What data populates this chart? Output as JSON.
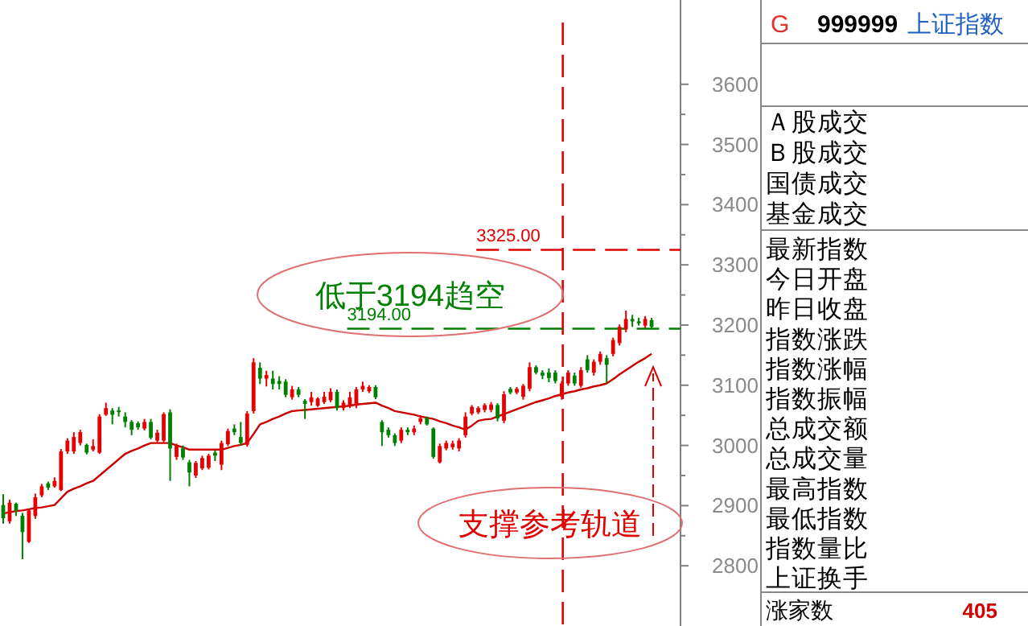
{
  "chart_data": [
    {
      "type": "candlestick",
      "categories": [
        null,
        null,
        null,
        null,
        null,
        null,
        null,
        null,
        null,
        null,
        null,
        null,
        null,
        null,
        null,
        null,
        null,
        null,
        null,
        null,
        null,
        null,
        null,
        null,
        null,
        null,
        null,
        null,
        null,
        null,
        null,
        null,
        null,
        null,
        null,
        null,
        null,
        null,
        null,
        null,
        null,
        null,
        null,
        null,
        null,
        null,
        null,
        null,
        null,
        null,
        null,
        null,
        null,
        null,
        null,
        null,
        null,
        null,
        null,
        null,
        null,
        null,
        null,
        null,
        null,
        null,
        null,
        null,
        null,
        null,
        null,
        null,
        null,
        null,
        null,
        null,
        null,
        null,
        null,
        null,
        null,
        null,
        null,
        null,
        null,
        null,
        null,
        null,
        null,
        null,
        null,
        null,
        null,
        null,
        null,
        null,
        null,
        null,
        null,
        null,
        null,
        null
      ],
      "ohlc": [
        [
          2901,
          2919,
          2870,
          2879
        ],
        [
          2874,
          2910,
          2870,
          2905
        ],
        [
          2903,
          2905,
          2883,
          2892
        ],
        [
          2883,
          2888,
          2811,
          2856
        ],
        [
          2840,
          2894,
          2838,
          2892
        ],
        [
          2883,
          2920,
          2878,
          2914
        ],
        [
          2917,
          2936,
          2914,
          2932
        ],
        [
          2937,
          2940,
          2926,
          2930
        ],
        [
          2932,
          2947,
          2930,
          2941
        ],
        [
          2926,
          2994,
          2924,
          2990
        ],
        [
          2990,
          3012,
          2986,
          3008
        ],
        [
          2990,
          3022,
          2986,
          3014
        ],
        [
          3004,
          3026,
          3000,
          3022
        ],
        [
          3001,
          3003,
          2985,
          2988
        ],
        [
          2993,
          3010,
          2990,
          2999
        ],
        [
          2988,
          3052,
          2986,
          3048
        ],
        [
          3051,
          3071,
          3049,
          3062
        ],
        [
          3058,
          3062,
          3035,
          3051
        ],
        [
          3058,
          3064,
          3048,
          3056
        ],
        [
          3048,
          3055,
          3030,
          3039
        ],
        [
          3039,
          3042,
          3017,
          3026
        ],
        [
          3037,
          3040,
          3026,
          3030
        ],
        [
          3028,
          3044,
          3025,
          3039
        ],
        [
          3039,
          3044,
          3010,
          3013
        ],
        [
          3008,
          3026,
          3004,
          3021
        ],
        [
          3008,
          3055,
          3004,
          3052
        ],
        [
          3055,
          3060,
          2941,
          2995
        ],
        [
          2981,
          3003,
          2976,
          2999
        ],
        [
          2995,
          3000,
          2976,
          2980
        ],
        [
          2972,
          2976,
          2932,
          2955
        ],
        [
          2950,
          2974,
          2946,
          2971
        ],
        [
          2962,
          2983,
          2959,
          2979
        ],
        [
          2963,
          2986,
          2960,
          2983
        ],
        [
          2988,
          2992,
          2974,
          2983
        ],
        [
          2968,
          3008,
          2959,
          3004
        ],
        [
          3002,
          3028,
          2999,
          3024
        ],
        [
          3028,
          3035,
          3017,
          3022
        ],
        [
          3014,
          3039,
          3000,
          3004
        ],
        [
          3001,
          3057,
          2998,
          3053
        ],
        [
          3057,
          3145,
          3053,
          3138
        ],
        [
          3129,
          3138,
          3102,
          3111
        ],
        [
          3111,
          3124,
          3098,
          3117
        ],
        [
          3111,
          3124,
          3093,
          3102
        ],
        [
          3107,
          3115,
          3093,
          3102
        ],
        [
          3106,
          3110,
          3080,
          3084
        ],
        [
          3080,
          3099,
          3076,
          3093
        ],
        [
          3093,
          3097,
          3080,
          3084
        ],
        [
          3074,
          3077,
          3044,
          3069
        ],
        [
          3072,
          3089,
          3066,
          3080
        ],
        [
          3066,
          3080,
          3064,
          3078
        ],
        [
          3072,
          3089,
          3069,
          3081
        ],
        [
          3075,
          3095,
          3072,
          3089
        ],
        [
          3089,
          3093,
          3058,
          3062
        ],
        [
          3062,
          3075,
          3058,
          3071
        ],
        [
          3066,
          3089,
          3062,
          3080
        ],
        [
          3066,
          3097,
          3062,
          3093
        ],
        [
          3093,
          3106,
          3089,
          3099
        ],
        [
          3090,
          3100,
          3087,
          3097
        ],
        [
          3097,
          3100,
          3077,
          3080
        ],
        [
          3039,
          3042,
          2999,
          3022
        ],
        [
          3026,
          3030,
          3013,
          3017
        ],
        [
          3017,
          3020,
          2999,
          3004
        ],
        [
          3008,
          3030,
          3004,
          3026
        ],
        [
          3026,
          3030,
          3017,
          3022
        ],
        [
          3022,
          3033,
          3017,
          3028
        ],
        [
          3039,
          3050,
          3035,
          3045
        ],
        [
          3046,
          3048,
          3033,
          3035
        ],
        [
          3028,
          3030,
          2978,
          2981
        ],
        [
          2972,
          3003,
          2970,
          2999
        ],
        [
          2995,
          3008,
          2992,
          3004
        ],
        [
          2997,
          3008,
          2993,
          3003
        ],
        [
          2995,
          3012,
          2990,
          3008
        ],
        [
          3017,
          3055,
          3013,
          3048
        ],
        [
          3053,
          3067,
          3050,
          3064
        ],
        [
          3055,
          3065,
          3052,
          3062
        ],
        [
          3059,
          3070,
          3055,
          3067
        ],
        [
          3059,
          3072,
          3055,
          3068
        ],
        [
          3067,
          3070,
          3040,
          3045
        ],
        [
          3041,
          3090,
          3037,
          3085
        ],
        [
          3094,
          3097,
          3085,
          3088
        ],
        [
          3088,
          3097,
          3085,
          3094
        ],
        [
          3081,
          3102,
          3076,
          3099
        ],
        [
          3094,
          3138,
          3090,
          3130
        ],
        [
          3130,
          3133,
          3118,
          3121
        ],
        [
          3121,
          3125,
          3110,
          3116
        ],
        [
          3121,
          3128,
          3105,
          3112
        ],
        [
          3121,
          3125,
          3103,
          3107
        ],
        [
          3081,
          3107,
          3076,
          3103
        ],
        [
          3103,
          3125,
          3099,
          3121
        ],
        [
          3116,
          3121,
          3099,
          3103
        ],
        [
          3099,
          3130,
          3096,
          3125
        ],
        [
          3143,
          3150,
          3121,
          3125
        ],
        [
          3121,
          3143,
          3116,
          3139
        ],
        [
          3139,
          3156,
          3134,
          3152
        ],
        [
          3145,
          3150,
          3103,
          3134
        ],
        [
          3152,
          3179,
          3148,
          3175
        ],
        [
          3170,
          3201,
          3166,
          3197
        ],
        [
          3193,
          3224,
          3188,
          3210
        ],
        [
          3210,
          3217,
          3197,
          3206
        ],
        [
          3206,
          3212,
          3199,
          3203
        ],
        [
          3199,
          3215,
          3195,
          3210
        ],
        [
          3208,
          3212,
          3193,
          3197
        ]
      ],
      "series": [
        {
          "type": "line",
          "color": "#cc0000",
          "values": [
            2887,
            2889,
            2891,
            2892,
            2894,
            2896,
            2897,
            2899,
            2901,
            2912,
            2923,
            2928,
            2932,
            2937,
            2941,
            2950,
            2959,
            2968,
            2977,
            2986,
            2991,
            2995,
            3000,
            3004,
            3004,
            3004,
            3004,
            3000,
            2997,
            2993,
            2993,
            2993,
            2993,
            2993,
            2993,
            2996,
            2999,
            3001,
            3004,
            3019,
            3035,
            3039,
            3044,
            3048,
            3053,
            3057,
            3058,
            3059,
            3060,
            3061,
            3062,
            3063,
            3064,
            3065,
            3066,
            3068,
            3069,
            3070,
            3071,
            3066,
            3062,
            3057,
            3055,
            3053,
            3051,
            3048,
            3046,
            3044,
            3040,
            3037,
            3033,
            3030,
            3026,
            3033,
            3041,
            3043,
            3044,
            3048,
            3052,
            3056,
            3060,
            3064,
            3068,
            3072,
            3075,
            3078,
            3082,
            3085,
            3088,
            3090,
            3093,
            3095,
            3098,
            3100,
            3103,
            3110,
            3118,
            3125,
            3132,
            3139,
            3145,
            3152
          ]
        }
      ],
      "ylim": [
        2700,
        3740
      ],
      "yticks": [
        2800,
        2900,
        3000,
        3100,
        3200,
        3300,
        3400,
        3500,
        3600
      ],
      "ref_lines": [
        {
          "axis": "y",
          "value": 3194,
          "label": "3194.00",
          "color": "#008000",
          "line_style": "dashed"
        },
        {
          "axis": "y",
          "value": 3325,
          "label": "3325.00",
          "color": "#e00000",
          "line_style": "dashed"
        }
      ],
      "annotations": [
        "低于3194趋空",
        "支撑参考轨道"
      ],
      "grid": false
    },
    {
      "type": "other",
      "annotations": [
        "G",
        "999999",
        "上证指数",
        "Ａ股成交",
        "Ｂ股成交",
        "国债成交",
        "基金成交",
        "最新指数",
        "今日开盘",
        "昨日收盘",
        "指数涨跌",
        "指数涨幅",
        "指数振幅",
        "总成交额",
        "总成交量",
        "最高指数",
        "最低指数",
        "指数量比",
        "上证换手",
        "涨家数",
        "405"
      ]
    }
  ]
}
